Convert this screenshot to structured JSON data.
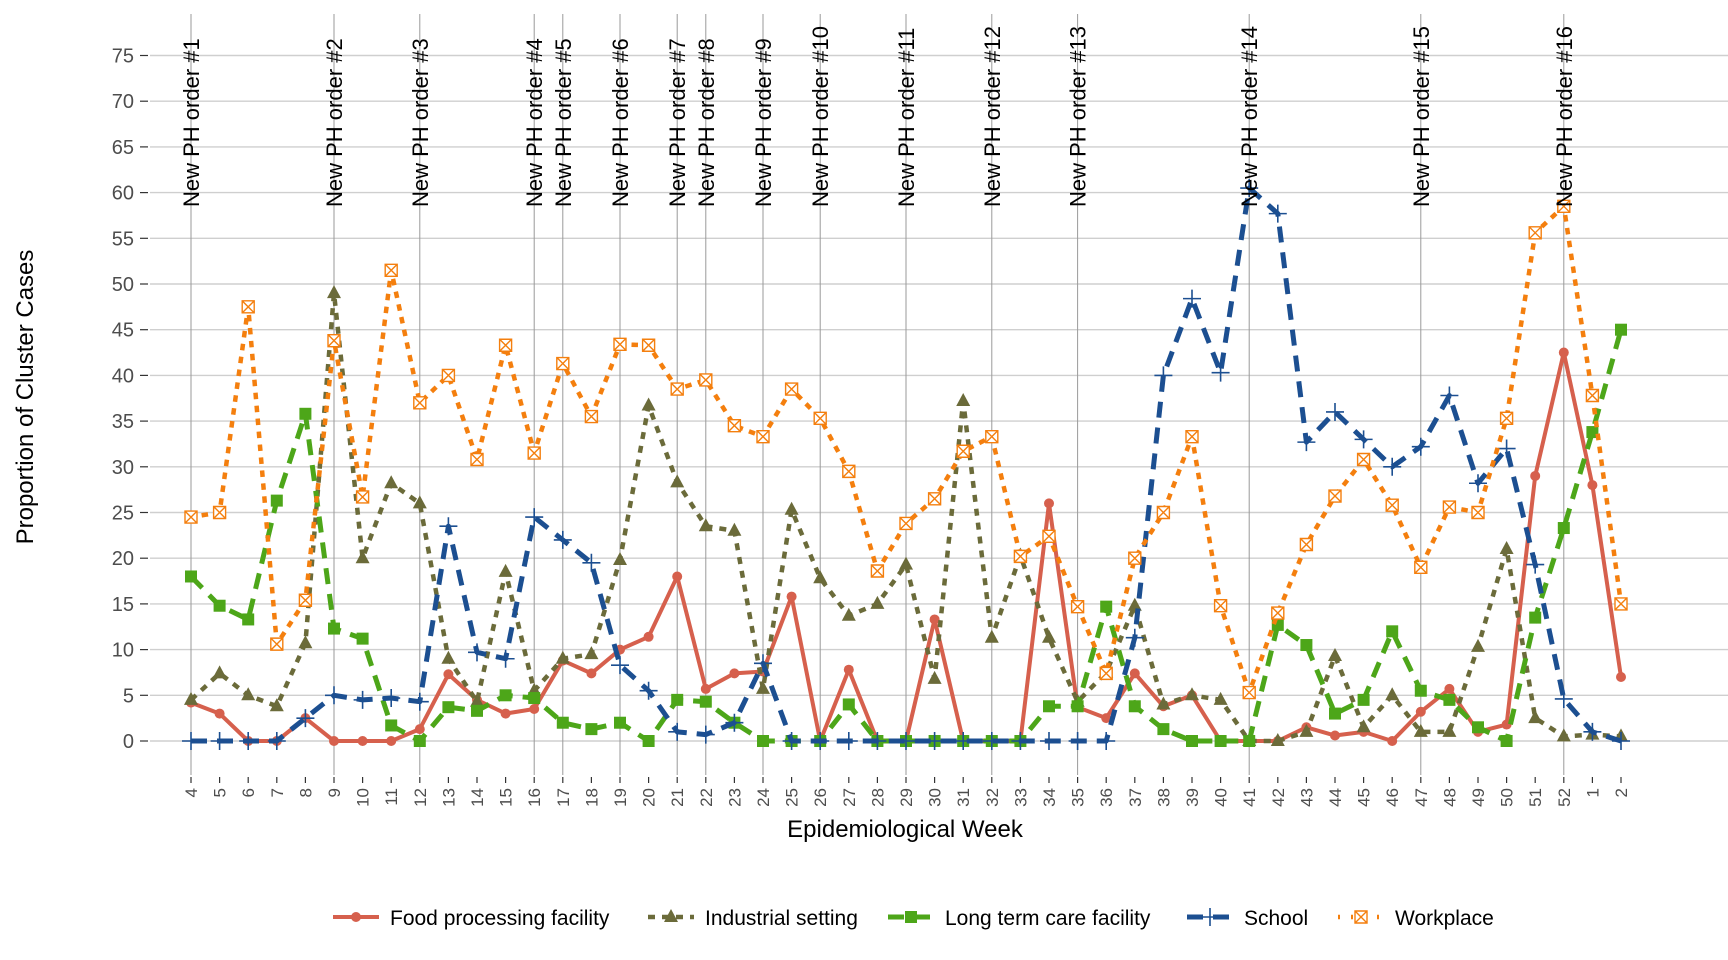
{
  "chart_data": {
    "type": "line",
    "title": "",
    "xlabel": "Epidemiological Week",
    "ylabel": "Proportion of Cluster Cases",
    "ylim": [
      -4,
      78
    ],
    "yticks": [
      0,
      5,
      10,
      15,
      20,
      25,
      30,
      35,
      40,
      45,
      50,
      55,
      60,
      65,
      70,
      75
    ],
    "grid": "horizontal",
    "legend_position": "bottom",
    "categories": [
      "4",
      "5",
      "6",
      "7",
      "8",
      "9",
      "10",
      "11",
      "12",
      "13",
      "14",
      "15",
      "16",
      "17",
      "18",
      "19",
      "20",
      "21",
      "22",
      "23",
      "24",
      "25",
      "26",
      "27",
      "28",
      "29",
      "30",
      "31",
      "32",
      "33",
      "34",
      "35",
      "36",
      "37",
      "38",
      "39",
      "40",
      "41",
      "42",
      "43",
      "44",
      "45",
      "46",
      "47",
      "48",
      "49",
      "50",
      "51",
      "52",
      "1",
      "2"
    ],
    "annotations": [
      {
        "week_index": 0,
        "label": "New PH order #1"
      },
      {
        "week_index": 5,
        "label": "New PH order #2"
      },
      {
        "week_index": 8,
        "label": "New PH order #3"
      },
      {
        "week_index": 12,
        "label": "New PH order #4"
      },
      {
        "week_index": 13,
        "label": "New PH order #5"
      },
      {
        "week_index": 15,
        "label": "New PH order #6"
      },
      {
        "week_index": 17,
        "label": "New PH order #7"
      },
      {
        "week_index": 18,
        "label": "New PH order #8"
      },
      {
        "week_index": 20,
        "label": "New PH order #9"
      },
      {
        "week_index": 22,
        "label": "New PH order #10"
      },
      {
        "week_index": 25,
        "label": "New PH order #11"
      },
      {
        "week_index": 28,
        "label": "New PH order #12"
      },
      {
        "week_index": 31,
        "label": "New PH order #13"
      },
      {
        "week_index": 37,
        "label": "New PH order #14"
      },
      {
        "week_index": 43,
        "label": "New PH order #15"
      },
      {
        "week_index": 48,
        "label": "New PH order #16"
      }
    ],
    "series": [
      {
        "name": "Food processing facility",
        "color": "#D6604D",
        "line_style": "solid",
        "marker": "circle",
        "values": [
          4.2,
          3,
          0,
          0,
          2.5,
          0,
          0,
          0,
          1.3,
          7.3,
          4.5,
          3,
          3.5,
          8.8,
          7.4,
          10,
          11.4,
          18,
          5.7,
          7.4,
          7.6,
          15.8,
          0,
          7.8,
          0,
          0,
          13.3,
          0,
          0,
          0,
          26,
          3.7,
          2.5,
          7.4,
          3.8,
          5,
          0,
          0,
          0,
          1.5,
          0.6,
          1,
          0,
          3.2,
          5.7,
          1,
          1.8,
          29,
          42.5,
          28,
          7
        ]
      },
      {
        "name": "Industrial setting",
        "color": "#6B6B3A",
        "line_style": "dashed-short",
        "marker": "triangle",
        "values": [
          4.5,
          7.4,
          5,
          3.8,
          10.7,
          49,
          20,
          28.2,
          26,
          9,
          4.3,
          18.5,
          5.5,
          9,
          9.5,
          19.8,
          36.7,
          28.3,
          23.5,
          23,
          5.7,
          25.3,
          17.8,
          13.7,
          15,
          19.3,
          6.8,
          37.2,
          11.3,
          20.3,
          11.3,
          4.3,
          7.5,
          14.8,
          4,
          5,
          4.5,
          0,
          0,
          1,
          9.3,
          1.5,
          5,
          1,
          1,
          10.3,
          21,
          2.5,
          0.5,
          0.7,
          0.5
        ]
      },
      {
        "name": "Long term care facility",
        "color": "#4DA619",
        "line_style": "dashed-long",
        "marker": "square",
        "values": [
          18,
          14.8,
          13.3,
          26.3,
          35.8,
          12.3,
          11.2,
          1.7,
          0,
          3.7,
          3.3,
          5,
          4.7,
          2,
          1.3,
          2,
          0,
          4.5,
          4.3,
          2,
          0,
          0,
          0,
          4,
          0,
          0,
          0,
          0,
          0,
          0,
          3.8,
          3.8,
          14.7,
          3.8,
          1.3,
          0,
          0,
          0,
          12.7,
          10.5,
          3,
          4.5,
          12,
          5.5,
          4.5,
          1.5,
          0,
          13.5,
          23.3,
          33.8,
          45
        ]
      },
      {
        "name": "School",
        "color": "#1C4F91",
        "line_style": "dashed-long",
        "marker": "plus",
        "values": [
          0,
          0,
          0,
          0,
          2.5,
          5,
          4.5,
          4.7,
          4.3,
          23.5,
          9.7,
          9,
          24.5,
          22,
          19.5,
          8.3,
          5.5,
          1,
          0.7,
          2,
          8.5,
          0,
          0,
          0,
          0,
          0,
          0,
          0,
          0,
          0,
          0,
          0,
          0,
          11.3,
          40,
          48.4,
          40.3,
          60.5,
          57.7,
          32.7,
          36,
          33,
          30,
          32.2,
          37.8,
          28.2,
          32,
          19.3,
          4.6,
          1,
          0
        ]
      },
      {
        "name": "Workplace",
        "color": "#F47F0E",
        "line_style": "dotted",
        "marker": "square-x",
        "values": [
          24.5,
          25,
          47.5,
          10.6,
          15.4,
          43.8,
          26.7,
          51.5,
          37,
          40,
          30.8,
          43.3,
          31.5,
          41.3,
          35.5,
          43.4,
          43.3,
          38.5,
          39.5,
          34.5,
          33.3,
          38.5,
          35.3,
          29.5,
          18.6,
          23.8,
          26.5,
          31.7,
          33.3,
          20.2,
          22.4,
          14.7,
          7.4,
          20,
          25,
          33.3,
          14.8,
          5.3,
          14,
          21.5,
          26.8,
          30.8,
          25.8,
          19,
          25.6,
          25,
          35.3,
          55.6,
          58.5,
          37.8,
          15
        ]
      }
    ]
  }
}
